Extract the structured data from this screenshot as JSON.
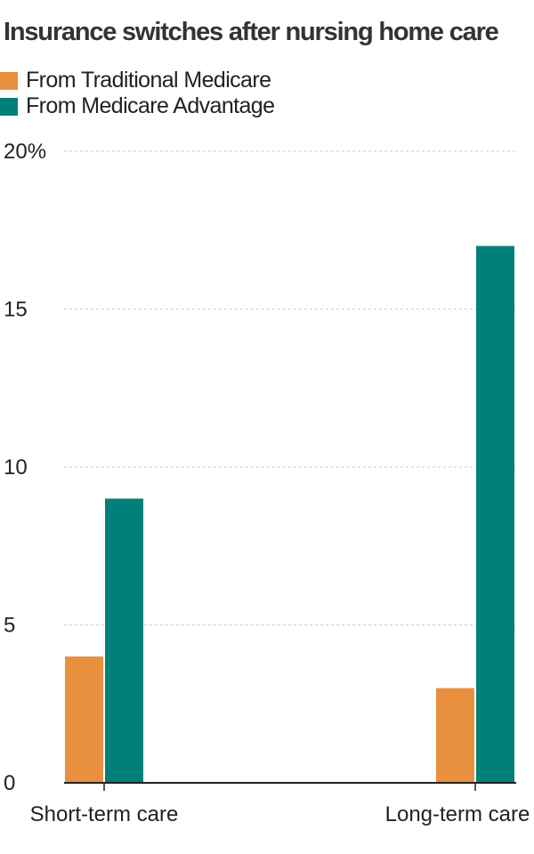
{
  "chart_data": {
    "type": "bar",
    "title": "Insurance switches after nursing home care",
    "categories": [
      "Short-term care",
      "Long-term care"
    ],
    "series": [
      {
        "name": "From Traditional Medicare",
        "color": "#e8903e",
        "values": [
          4,
          3
        ]
      },
      {
        "name": "From Medicare Advantage",
        "color": "#008078",
        "values": [
          9,
          17
        ]
      }
    ],
    "y_ticks": [
      "0",
      "5",
      "10",
      "15",
      "20%"
    ],
    "y_tick_values": [
      0,
      5,
      10,
      15,
      20
    ],
    "ylim": [
      0,
      20
    ],
    "grid": true,
    "legend_position": "top-left"
  }
}
